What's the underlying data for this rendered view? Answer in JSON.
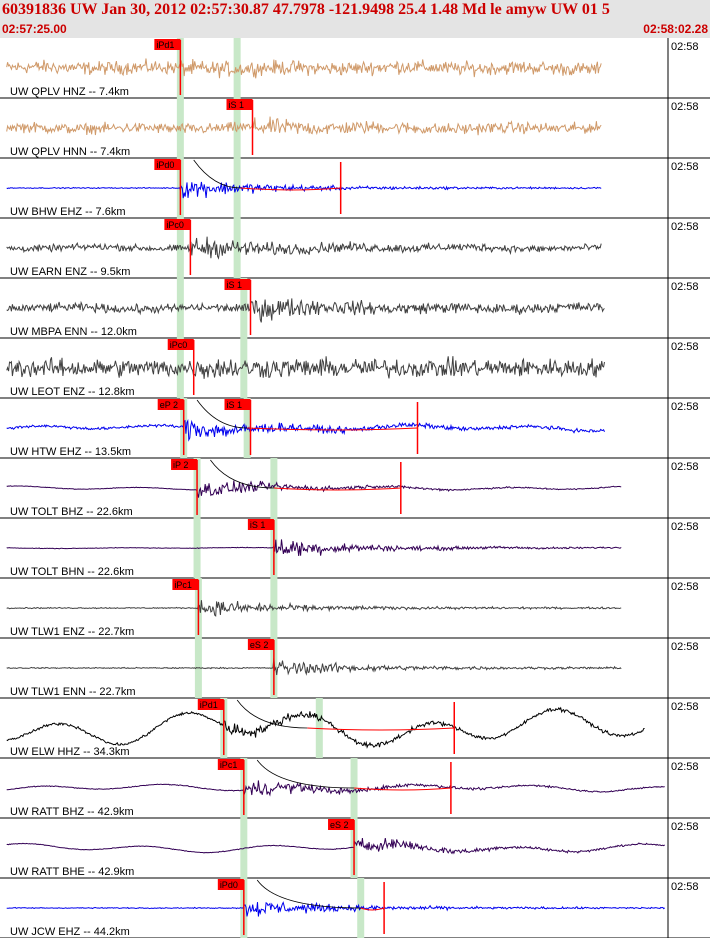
{
  "header": {
    "title": "60391836 UW Jan 30, 2012 02:57:30.87   47.7978 -121.9498 25.4 1.48 Md le amyw UW 01   5",
    "start_time": "02:57:25.00",
    "end_time": "02:58:02.28"
  },
  "colors": {
    "header_bg": "#e4e4e4",
    "header_text": "#cc0000",
    "pick": "#ff0000",
    "pick_window": "#c8e8c8"
  },
  "chart_data": {
    "type": "seismogram",
    "time_window": [
      "02:57:25.00",
      "02:58:02.28"
    ],
    "traces": [
      {
        "label": "UW QPLV HNZ -- 7.4km",
        "time_label": "02:58",
        "color": "#d09a6a",
        "noise": 0.7,
        "lowfreq": 0.05,
        "sig": 0.15,
        "end": 0.9,
        "coda": "",
        "picks": [
          {
            "label": "iPd1",
            "x": 0.27
          }
        ],
        "windows": [
          0.27,
          0.355
        ]
      },
      {
        "label": "UW QPLV HNN -- 7.4km",
        "time_label": "02:58",
        "color": "#d09a6a",
        "noise": 0.55,
        "lowfreq": 0.05,
        "sig": 0.35,
        "end": 0.9,
        "coda": "",
        "picks": [
          {
            "label": "iS 1",
            "x": 0.378
          }
        ],
        "windows": [
          0.27,
          0.355
        ]
      },
      {
        "label": "UW BHW EHZ -- 7.6km",
        "time_label": "02:58",
        "color": "#0000ee",
        "noise": 0.05,
        "lowfreq": 0.0,
        "sig": 0.9,
        "end": 0.9,
        "coda": "0.36,0.51",
        "picks": [
          {
            "label": "iPd0",
            "x": 0.27
          }
        ],
        "windows": [
          0.27,
          0.355
        ]
      },
      {
        "label": "UW EARN ENZ -- 9.5km",
        "time_label": "02:58",
        "color": "#404040",
        "noise": 0.35,
        "lowfreq": 0.05,
        "sig": 0.75,
        "end": 0.9,
        "coda": "",
        "picks": [
          {
            "label": "iPc0",
            "x": 0.285
          }
        ],
        "windows": [
          0.27,
          0.355
        ]
      },
      {
        "label": "UW MBPA ENN -- 12.0km",
        "time_label": "02:58",
        "color": "#404040",
        "noise": 0.45,
        "lowfreq": 0.05,
        "sig": 0.75,
        "end": 0.905,
        "coda": "",
        "picks": [
          {
            "label": "iS 1",
            "x": 0.375
          }
        ],
        "windows": [
          0.27,
          0.365
        ]
      },
      {
        "label": "UW LEOT ENZ -- 12.8km",
        "time_label": "02:58",
        "color": "#404040",
        "noise": 0.95,
        "lowfreq": 0.0,
        "sig": 0.2,
        "end": 0.905,
        "coda": "",
        "picks": [
          {
            "label": "iPc0",
            "x": 0.29
          }
        ],
        "windows": [
          0.27,
          0.365
        ]
      },
      {
        "label": "UW HTW EHZ -- 13.5km",
        "time_label": "02:58",
        "color": "#0000ee",
        "noise": 0.15,
        "lowfreq": 0.12,
        "sig": 0.85,
        "end": 0.905,
        "coda": "0.37,0.625",
        "picks": [
          {
            "label": "eP 2",
            "x": 0.275
          },
          {
            "label": "iS 1",
            "x": 0.375
          }
        ],
        "windows": [
          0.275,
          0.37
        ]
      },
      {
        "label": "UW TOLT BHZ -- 22.6km",
        "time_label": "02:58",
        "color": "#330055",
        "noise": 0.03,
        "lowfreq": 0.08,
        "sig": 0.8,
        "end": 0.93,
        "coda": "0.41,0.6",
        "picks": [
          {
            "label": "iP 2",
            "x": 0.295
          }
        ],
        "windows": [
          0.295,
          0.41
        ]
      },
      {
        "label": "UW TOLT BHN -- 22.6km",
        "time_label": "02:58",
        "color": "#330055",
        "noise": 0.03,
        "lowfreq": 0.02,
        "sig": 0.9,
        "end": 0.93,
        "coda": "",
        "picks": [
          {
            "label": "iS 1",
            "x": 0.41
          }
        ],
        "windows": [
          0.295,
          0.41
        ]
      },
      {
        "label": "UW TLW1 ENZ -- 22.7km",
        "time_label": "02:58",
        "color": "#404040",
        "noise": 0.06,
        "lowfreq": 0.0,
        "sig": 0.75,
        "end": 0.93,
        "coda": "",
        "picks": [
          {
            "label": "iPc1",
            "x": 0.297
          }
        ],
        "windows": [
          0.297,
          0.41
        ]
      },
      {
        "label": "UW TLW1 ENN -- 22.7km",
        "time_label": "02:58",
        "color": "#404040",
        "noise": 0.06,
        "lowfreq": 0.0,
        "sig": 0.75,
        "end": 0.93,
        "coda": "",
        "picks": [
          {
            "label": "eS 2",
            "x": 0.41
          }
        ],
        "windows": [
          0.297,
          0.41
        ]
      },
      {
        "label": "UW ELW HHZ -- 34.3km",
        "time_label": "02:58",
        "color": "#000000",
        "noise": 0.15,
        "lowfreq": 0.75,
        "sig": 0.5,
        "end": 0.965,
        "coda": "0.46,0.68",
        "picks": [
          {
            "label": "iPd1",
            "x": 0.335
          }
        ],
        "windows": [
          0.335,
          0.478
        ]
      },
      {
        "label": "UW RATT BHZ -- 42.9km",
        "time_label": "02:58",
        "color": "#330055",
        "noise": 0.04,
        "lowfreq": 0.15,
        "sig": 0.75,
        "end": 0.995,
        "coda": "0.53,0.675",
        "picks": [
          {
            "label": "iPc1",
            "x": 0.365
          }
        ],
        "windows": [
          0.365,
          0.53
        ]
      },
      {
        "label": "UW RATT BHE -- 42.9km",
        "time_label": "02:58",
        "color": "#330055",
        "noise": 0.04,
        "lowfreq": 0.18,
        "sig": 0.7,
        "end": 0.995,
        "coda": "",
        "picks": [
          {
            "label": "eS 2",
            "x": 0.53
          }
        ],
        "windows": [
          0.365,
          0.53
        ]
      },
      {
        "label": "UW JCW EHZ -- 44.2km",
        "time_label": "02:58",
        "color": "#0000ee",
        "noise": 0.05,
        "lowfreq": 0.0,
        "sig": 0.8,
        "end": 0.995,
        "coda": "0.54,0.575",
        "picks": [
          {
            "label": "iPd0",
            "x": 0.365
          }
        ],
        "windows": [
          0.365,
          0.54
        ]
      }
    ]
  }
}
